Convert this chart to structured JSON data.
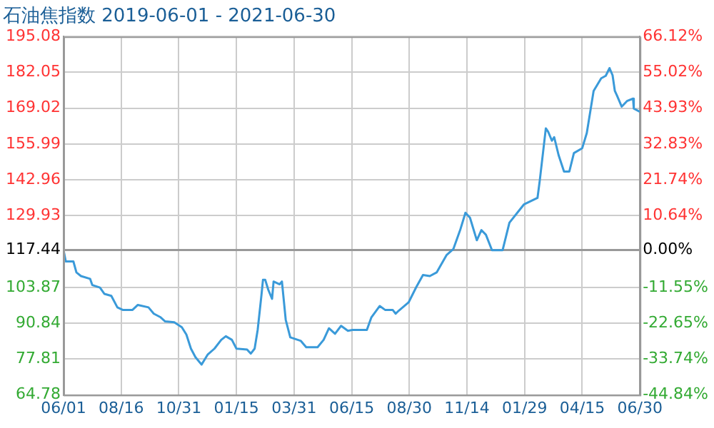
{
  "chart_data": {
    "type": "line",
    "title": "石油焦指数 2019-06-01 - 2021-06-30",
    "x": [
      "2019-06-01",
      "2019-06-04",
      "2019-06-14",
      "2019-06-18",
      "2019-06-24",
      "2019-07-06",
      "2019-07-09",
      "2019-07-19",
      "2019-07-25",
      "2019-08-03",
      "2019-08-11",
      "2019-08-18",
      "2019-08-31",
      "2019-09-07",
      "2019-09-21",
      "2019-09-28",
      "2019-10-07",
      "2019-10-13",
      "2019-10-25",
      "2019-11-04",
      "2019-11-10",
      "2019-11-16",
      "2019-11-22",
      "2019-11-30",
      "2019-12-08",
      "2019-12-17",
      "2019-12-26",
      "2020-01-01",
      "2020-01-09",
      "2020-01-15",
      "2020-01-29",
      "2020-02-03",
      "2020-02-08",
      "2020-02-12",
      "2020-02-17",
      "2020-02-19",
      "2020-02-22",
      "2020-02-26",
      "2020-03-02",
      "2020-03-04",
      "2020-03-12",
      "2020-03-15",
      "2020-03-20",
      "2020-03-26",
      "2020-04-09",
      "2020-04-16",
      "2020-05-01",
      "2020-05-09",
      "2020-05-16",
      "2020-05-24",
      "2020-06-01",
      "2020-06-10",
      "2020-06-16",
      "2020-07-05",
      "2020-07-11",
      "2020-07-22",
      "2020-07-29",
      "2020-08-08",
      "2020-08-12",
      "2020-08-16",
      "2020-08-29",
      "2020-09-08",
      "2020-09-17",
      "2020-09-26",
      "2020-10-05",
      "2020-10-18",
      "2020-10-27",
      "2020-11-05",
      "2020-11-12",
      "2020-11-18",
      "2020-11-27",
      "2020-12-03",
      "2020-12-09",
      "2020-12-17",
      "2020-12-31",
      "2021-01-09",
      "2021-01-22",
      "2021-01-28",
      "2021-02-15",
      "2021-02-18",
      "2021-02-26",
      "2021-03-01",
      "2021-03-06",
      "2021-03-09",
      "2021-03-15",
      "2021-03-22",
      "2021-03-29",
      "2021-04-04",
      "2021-04-15",
      "2021-04-21",
      "2021-04-30",
      "2021-05-10",
      "2021-05-16",
      "2021-05-21",
      "2021-05-25",
      "2021-05-28",
      "2021-05-31",
      "2021-06-06",
      "2021-06-13",
      "2021-06-21",
      "2021-06-22",
      "2021-06-30"
    ],
    "series": [
      {
        "color": "#3a9ad9",
        "values": [
          117.44,
          113.3,
          113.3,
          109.3,
          108,
          107,
          104.7,
          103.8,
          101.5,
          100.8,
          96.6,
          95.7,
          95.7,
          97.5,
          96.6,
          94.3,
          93,
          91.5,
          91.2,
          89.4,
          86.7,
          81.6,
          78.5,
          75.8,
          79.4,
          81.6,
          84.8,
          86.1,
          84.8,
          81.6,
          81.3,
          79.8,
          81.6,
          88.4,
          101.1,
          106.6,
          106.6,
          103,
          99.7,
          106,
          105,
          106,
          92.1,
          85.7,
          84.4,
          82.1,
          82.1,
          84.8,
          89,
          87,
          89.9,
          88.1,
          88.4,
          88.4,
          93,
          97.1,
          95.7,
          95.7,
          94.3,
          95.4,
          98.4,
          103.9,
          108.4,
          108,
          109.3,
          115.6,
          117.8,
          124.7,
          131,
          129.2,
          121,
          124.7,
          123,
          117.4,
          117.4,
          127.4,
          131.9,
          134,
          136.4,
          142.7,
          161.7,
          160.5,
          157.2,
          158.5,
          151.8,
          146,
          146,
          152.7,
          154.5,
          160,
          175.3,
          179.9,
          180.8,
          183.6,
          181,
          175.3,
          173.5,
          169.6,
          171.6,
          172.5,
          168.9,
          167.7
        ]
      }
    ],
    "xlim": [
      "2019-06-01",
      "2021-06-30"
    ],
    "xticks": [
      {
        "value": "2019-06-01",
        "label": "06/01"
      },
      {
        "value": "2019-08-16",
        "label": "08/16"
      },
      {
        "value": "2019-10-31",
        "label": "10/31"
      },
      {
        "value": "2020-01-15",
        "label": "01/15"
      },
      {
        "value": "2020-03-31",
        "label": "03/31"
      },
      {
        "value": "2020-06-15",
        "label": "06/15"
      },
      {
        "value": "2020-08-30",
        "label": "08/30"
      },
      {
        "value": "2020-11-14",
        "label": "11/14"
      },
      {
        "value": "2021-01-29",
        "label": "01/29"
      },
      {
        "value": "2021-04-15",
        "label": "04/15"
      },
      {
        "value": "2021-06-30",
        "label": "06/30"
      }
    ],
    "ylim": [
      64.78,
      195.08
    ],
    "yticks": [
      64.78,
      77.81,
      90.84,
      103.87,
      117.44,
      129.93,
      142.96,
      155.99,
      169.02,
      182.05,
      195.08
    ],
    "y2lim": [
      -44.84,
      66.12
    ],
    "y2ticks": [
      {
        "value": -44.84,
        "label": "-44.84%"
      },
      {
        "value": -33.74,
        "label": "-33.74%"
      },
      {
        "value": -22.65,
        "label": "-22.65%"
      },
      {
        "value": -11.55,
        "label": "-11.55%"
      },
      {
        "value": 0,
        "label": "0.00%"
      },
      {
        "value": 10.64,
        "label": "10.64%"
      },
      {
        "value": 21.74,
        "label": "21.74%"
      },
      {
        "value": 32.83,
        "label": "32.83%"
      },
      {
        "value": 43.93,
        "label": "43.93%"
      },
      {
        "value": 55.02,
        "label": "55.02%"
      },
      {
        "value": 66.12,
        "label": "66.12%"
      }
    ],
    "ref_lines": [
      {
        "axis": "y",
        "value": 117.44,
        "color": "#999999"
      }
    ],
    "grid": true,
    "legend": false,
    "marker": "none",
    "line_style": "solid"
  }
}
